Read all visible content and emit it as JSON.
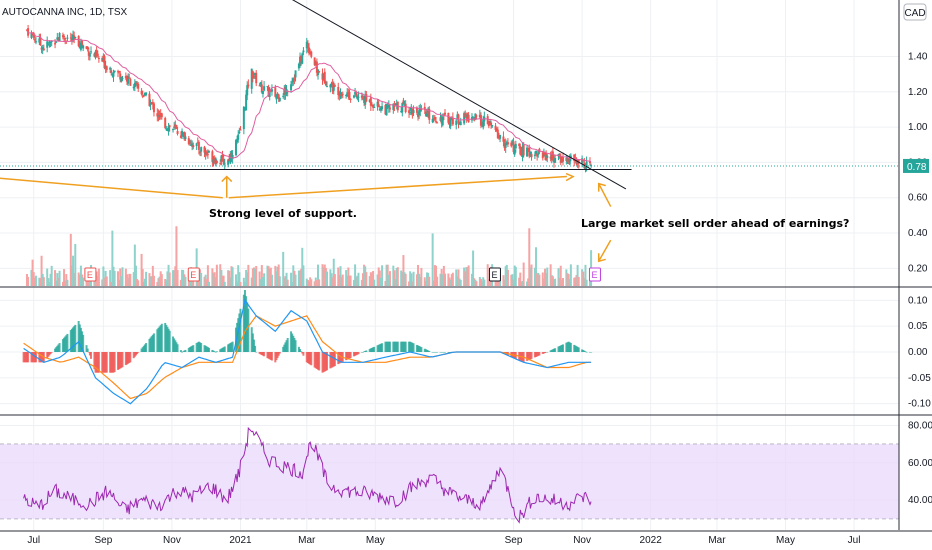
{
  "header": {
    "symbol_title": "AUTOCANNA INC, 1D, TSX",
    "currency": "CAD"
  },
  "chart_data": {
    "type": "line",
    "title": "AUTOCANNA INC, 1D, TSX",
    "x_ticks": [
      "Jul",
      "Sep",
      "Nov",
      "2021",
      "Mar",
      "May",
      "Sep",
      "Nov",
      "2022",
      "Mar",
      "May",
      "Jul"
    ],
    "x_tick_dates": [
      "2020-07-01",
      "2020-09-01",
      "2020-11-01",
      "2021-01-01",
      "2021-03-01",
      "2021-05-01",
      "2021-09-01",
      "2021-11-01",
      "2022-01-01",
      "2022-03-01",
      "2022-05-01",
      "2022-07-01"
    ],
    "price": {
      "ylim": [
        0.1,
        1.72
      ],
      "y_ticks": [
        "1.40",
        "1.20",
        "1.00",
        "0.80",
        "0.60",
        "0.40",
        "0.20"
      ],
      "last_price_label": "0.78",
      "last_price": 0.78,
      "series": [
        {
          "dates": [
            "2020-06-25",
            "2020-07-10",
            "2020-07-25",
            "2020-08-10",
            "2020-08-25",
            "2020-09-10",
            "2020-09-25",
            "2020-10-10",
            "2020-10-25",
            "2020-11-10",
            "2020-11-25",
            "2020-12-10",
            "2020-12-20",
            "2020-12-31",
            "2021-01-10",
            "2021-01-20",
            "2021-02-01",
            "2021-02-10",
            "2021-02-20",
            "2021-03-01",
            "2021-03-10",
            "2021-03-25",
            "2021-04-10",
            "2021-04-25",
            "2021-05-10",
            "2021-05-25",
            "2021-06-10",
            "2021-06-25",
            "2021-07-10",
            "2021-07-25",
            "2021-08-10",
            "2021-08-25",
            "2021-09-10",
            "2021-09-25",
            "2021-10-10",
            "2021-10-25",
            "2021-11-05",
            "2021-11-09"
          ],
          "close": [
            1.55,
            1.45,
            1.52,
            1.48,
            1.4,
            1.32,
            1.26,
            1.16,
            1.02,
            0.96,
            0.88,
            0.82,
            0.8,
            0.95,
            1.32,
            1.22,
            1.18,
            1.2,
            1.32,
            1.48,
            1.32,
            1.22,
            1.18,
            1.15,
            1.1,
            1.12,
            1.08,
            1.05,
            1.04,
            1.06,
            1.02,
            0.9,
            0.86,
            0.85,
            0.82,
            0.81,
            0.79,
            0.78
          ]
        }
      ]
    },
    "volume": {
      "earnings_markers": [
        "E",
        "E",
        "E",
        "E"
      ],
      "earnings_dates": [
        "2020-08-20",
        "2020-11-20",
        "2021-08-15",
        "2021-11-12"
      ]
    },
    "macd": {
      "ylim": [
        -0.12,
        0.12
      ],
      "y_ticks": [
        "0.10",
        "0.05",
        "0.00",
        "-0.05",
        "-0.10"
      ],
      "dates": [
        "2020-06-20",
        "2020-07-10",
        "2020-07-25",
        "2020-08-10",
        "2020-08-25",
        "2020-09-10",
        "2020-09-25",
        "2020-10-10",
        "2020-10-25",
        "2020-11-10",
        "2020-11-25",
        "2020-12-10",
        "2020-12-25",
        "2021-01-05",
        "2021-01-15",
        "2021-02-01",
        "2021-02-15",
        "2021-03-01",
        "2021-03-15",
        "2021-04-01",
        "2021-04-20",
        "2021-05-10",
        "2021-06-01",
        "2021-06-20",
        "2021-07-10",
        "2021-08-01",
        "2021-08-20",
        "2021-09-10",
        "2021-10-01",
        "2021-10-20",
        "2021-11-05",
        "2021-11-09"
      ],
      "macd": [
        0.01,
        -0.02,
        -0.01,
        0.02,
        -0.05,
        -0.08,
        -0.1,
        -0.07,
        -0.02,
        -0.03,
        -0.01,
        -0.02,
        -0.01,
        0.1,
        0.07,
        0.04,
        0.08,
        0.06,
        0.0,
        -0.02,
        -0.02,
        -0.01,
        0.0,
        -0.01,
        0.0,
        0.0,
        0.0,
        -0.02,
        -0.03,
        -0.02,
        -0.02,
        -0.02
      ],
      "signal": [
        0.02,
        -0.01,
        -0.02,
        -0.01,
        -0.03,
        -0.06,
        -0.09,
        -0.08,
        -0.05,
        -0.03,
        -0.02,
        -0.02,
        -0.02,
        0.04,
        0.07,
        0.05,
        0.06,
        0.07,
        0.02,
        -0.01,
        -0.02,
        -0.02,
        -0.01,
        -0.01,
        0.0,
        0.0,
        0.0,
        -0.01,
        -0.03,
        -0.03,
        -0.02,
        -0.02
      ]
    },
    "rsi": {
      "ylim": [
        24,
        84
      ],
      "y_ticks": [
        "80.00",
        "60.00",
        "40.00"
      ],
      "band": [
        30,
        70
      ],
      "dates": [
        "2020-06-20",
        "2020-07-05",
        "2020-07-20",
        "2020-08-05",
        "2020-08-20",
        "2020-09-05",
        "2020-09-20",
        "2020-10-05",
        "2020-10-20",
        "2020-11-05",
        "2020-11-20",
        "2020-12-05",
        "2020-12-20",
        "2020-12-31",
        "2021-01-10",
        "2021-01-25",
        "2021-02-10",
        "2021-02-25",
        "2021-03-05",
        "2021-03-20",
        "2021-04-05",
        "2021-04-20",
        "2021-05-05",
        "2021-05-20",
        "2021-06-05",
        "2021-06-20",
        "2021-07-05",
        "2021-07-20",
        "2021-08-05",
        "2021-08-20",
        "2021-09-05",
        "2021-09-20",
        "2021-10-05",
        "2021-10-20",
        "2021-11-01",
        "2021-11-09"
      ],
      "values": [
        42,
        36,
        45,
        40,
        38,
        45,
        34,
        40,
        37,
        45,
        42,
        48,
        40,
        55,
        80,
        62,
        58,
        55,
        72,
        48,
        45,
        44,
        42,
        40,
        48,
        52,
        44,
        40,
        38,
        58,
        30,
        42,
        40,
        38,
        42,
        40
      ]
    }
  },
  "annotations": {
    "support_label": "Strong level of support.",
    "sell_label": "Large market sell order ahead of earnings?"
  }
}
